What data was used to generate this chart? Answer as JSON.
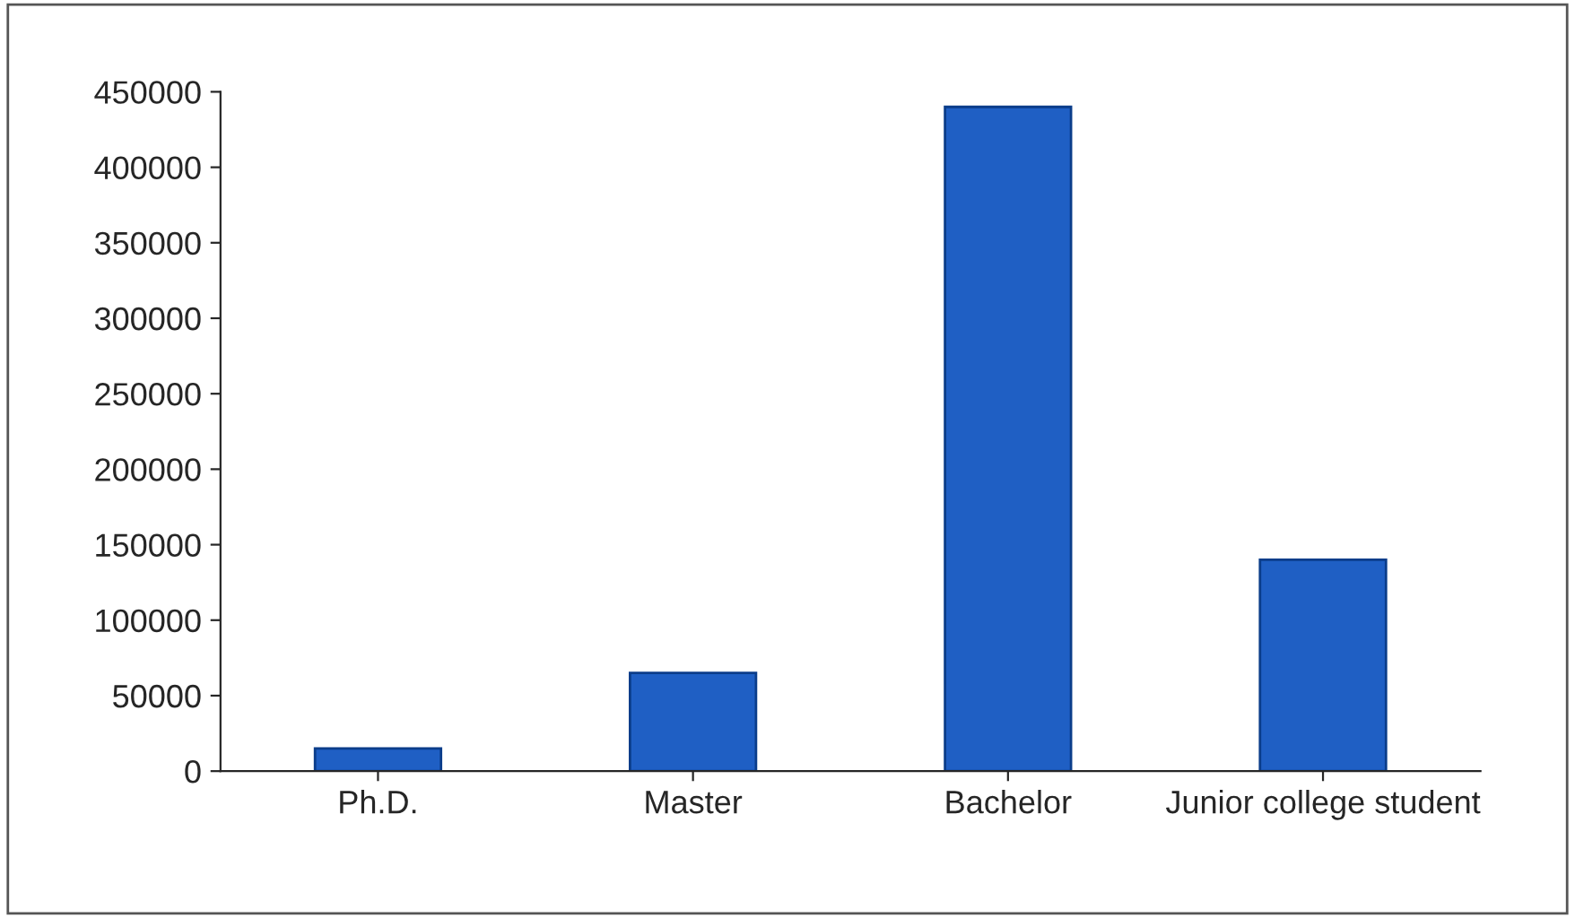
{
  "chart_data": {
    "type": "bar",
    "categories": [
      "Ph.D.",
      "Master",
      "Bachelor",
      "Junior college student"
    ],
    "values": [
      15000,
      65000,
      440000,
      140000
    ],
    "color": "#1f5fc4",
    "ylim": [
      0,
      450000
    ],
    "yticks": [
      0,
      50000,
      100000,
      150000,
      200000,
      250000,
      300000,
      350000,
      400000,
      450000
    ],
    "grid": false
  }
}
